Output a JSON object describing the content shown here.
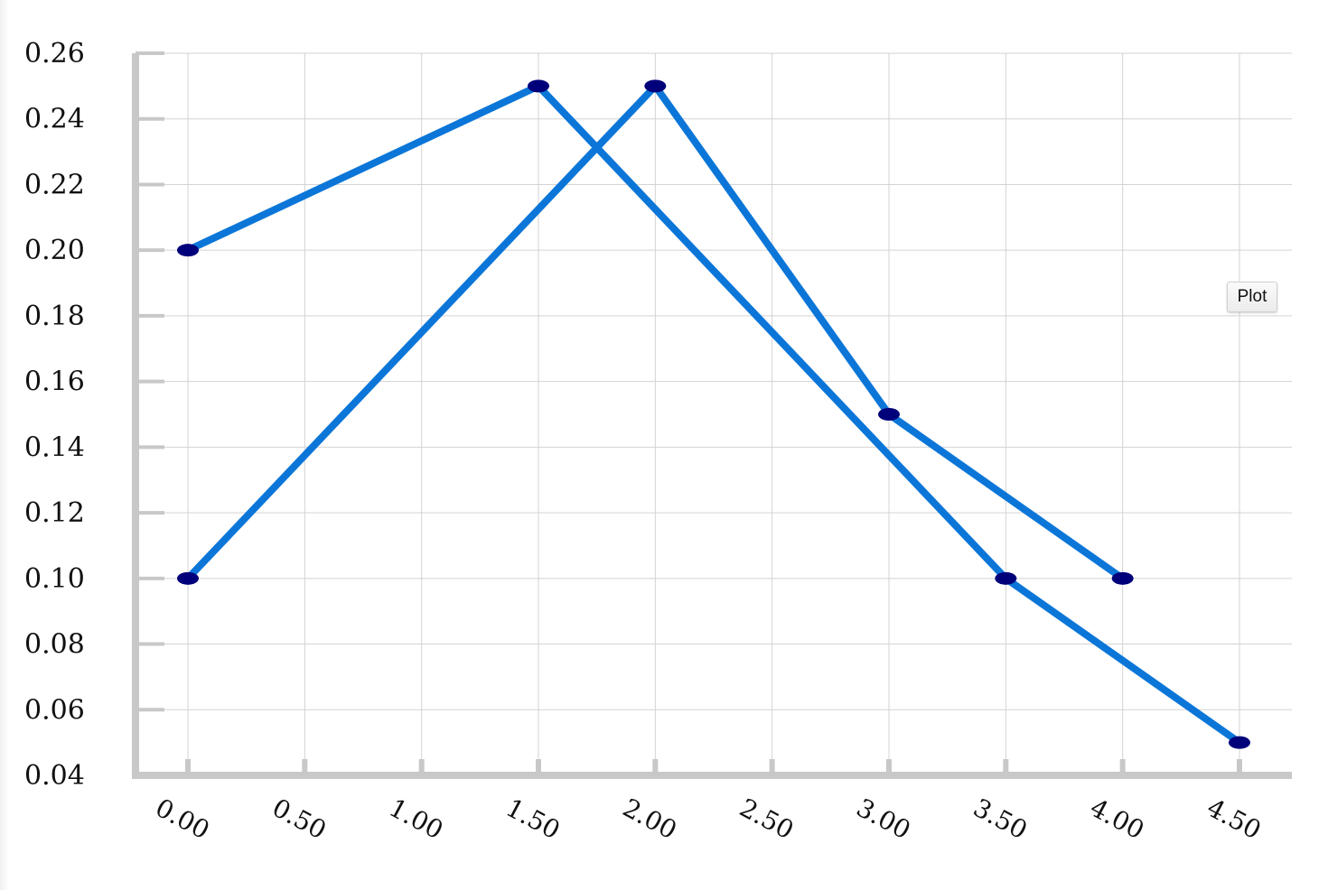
{
  "controls": {
    "plot_button_label": "Plot"
  },
  "colors": {
    "line": "#0b76d8",
    "marker": "#00007a",
    "grid": "#d3d3d3",
    "axis": "#c8c8c8"
  },
  "chart_data": {
    "type": "line",
    "title": "",
    "xlabel": "",
    "ylabel": "",
    "grid": true,
    "xlim": [
      -0.2,
      4.7
    ],
    "ylim": [
      0.04,
      0.26
    ],
    "x_ticks": [
      0,
      0.5,
      1,
      1.5,
      2,
      2.5,
      3,
      3.5,
      4,
      4.5
    ],
    "x_tick_labels": [
      "0.00",
      "0.50",
      "1.00",
      "1.50",
      "2.00",
      "2.50",
      "3.00",
      "3.50",
      "4.00",
      "4.50"
    ],
    "y_ticks": [
      0.04,
      0.06,
      0.08,
      0.1,
      0.12,
      0.14,
      0.16,
      0.18,
      0.2,
      0.22,
      0.24,
      0.26
    ],
    "y_tick_labels": [
      "0.04",
      "0.06",
      "0.08",
      "0.10",
      "0.12",
      "0.14",
      "0.16",
      "0.18",
      "0.20",
      "0.22",
      "0.24",
      "0.26"
    ],
    "series": [
      {
        "x": [
          0,
          1.5,
          3.5,
          4.5
        ],
        "y": [
          0.2,
          0.25,
          0.1,
          0.05
        ]
      },
      {
        "x": [
          0,
          2,
          3,
          4
        ],
        "y": [
          0.1,
          0.25,
          0.15,
          0.1
        ]
      }
    ]
  }
}
